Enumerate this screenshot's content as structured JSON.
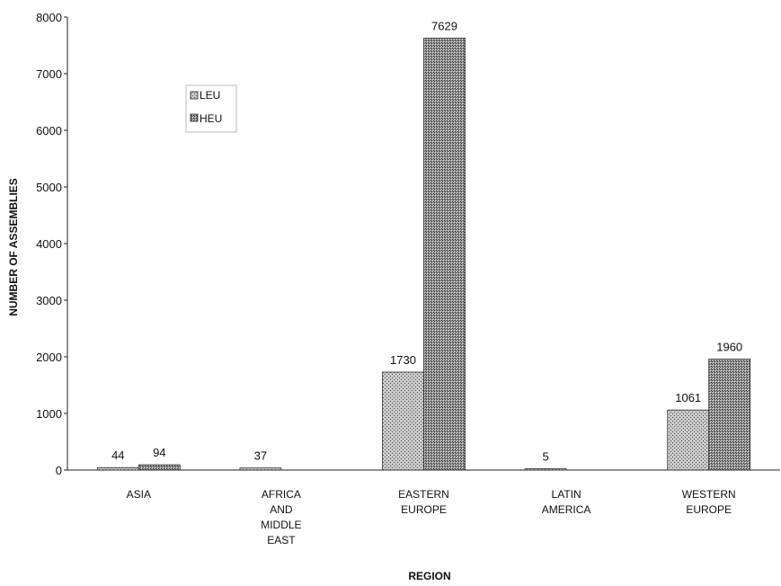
{
  "chart_data": {
    "type": "bar",
    "title": "",
    "xlabel": "REGION",
    "ylabel": "NUMBER OF ASSEMBLIES",
    "ylim": [
      0,
      8000
    ],
    "yticks": [
      0,
      1000,
      2000,
      3000,
      4000,
      5000,
      6000,
      7000,
      8000
    ],
    "grid": false,
    "legend_position": "upper-left",
    "categories": [
      [
        "ASIA"
      ],
      [
        "AFRICA",
        "AND",
        "MIDDLE",
        "EAST"
      ],
      [
        "EASTERN",
        "EUROPE"
      ],
      [
        "LATIN",
        "AMERICA"
      ],
      [
        "WESTERN",
        "EUROPE"
      ]
    ],
    "series": [
      {
        "name": "LEU",
        "values": [
          44,
          37,
          1730,
          5,
          1061
        ],
        "labels": [
          "44",
          "37",
          "1730",
          "5",
          "1061"
        ]
      },
      {
        "name": "HEU",
        "values": [
          94,
          0,
          7629,
          0,
          1960
        ],
        "labels": [
          "94",
          "",
          "7629",
          "",
          "1960"
        ]
      }
    ]
  }
}
